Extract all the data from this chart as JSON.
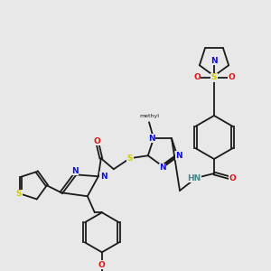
{
  "bg_color": "#e8e8e8",
  "bond_color": "#1a1a1a",
  "lw": 1.3,
  "colors": {
    "N": "#1010dd",
    "O": "#dd1111",
    "S": "#cccc00",
    "HN": "#448888",
    "C": "#1a1a1a"
  },
  "fs": 6.5
}
